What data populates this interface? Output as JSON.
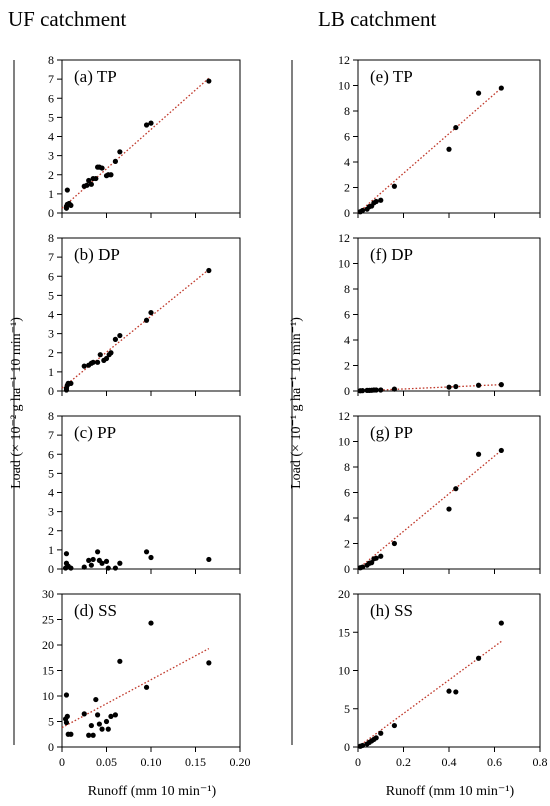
{
  "figure": {
    "left_title": "UF catchment",
    "right_title": "LB catchment",
    "left_ylabel": "Load (× 10⁻² g ha⁻¹ 10 min⁻¹)",
    "right_ylabel": "Load (× 10⁻¹ g ha⁻¹ 10 min⁻¹)",
    "left_xlabel": "Runoff (mm 10 min⁻¹)",
    "right_xlabel": "Runoff (mm 10 min⁻¹)"
  },
  "colors": {
    "points": "#000000",
    "trend": "#c0392b",
    "axis": "#000000"
  },
  "chart_data": [
    {
      "type": "scatter",
      "id": "a",
      "label": "(a) TP",
      "xlim": [
        0,
        0.2
      ],
      "ylim": [
        0,
        8
      ],
      "xticks": [],
      "yticks": [
        "0",
        "1",
        "2",
        "3",
        "4",
        "5",
        "6",
        "7",
        "8"
      ],
      "points": [
        [
          0.005,
          0.25
        ],
        [
          0.005,
          0.35
        ],
        [
          0.006,
          0.45
        ],
        [
          0.006,
          1.2
        ],
        [
          0.008,
          0.5
        ],
        [
          0.01,
          0.4
        ],
        [
          0.025,
          1.4
        ],
        [
          0.028,
          1.45
        ],
        [
          0.03,
          1.7
        ],
        [
          0.033,
          1.5
        ],
        [
          0.035,
          1.8
        ],
        [
          0.038,
          1.8
        ],
        [
          0.04,
          2.4
        ],
        [
          0.042,
          2.4
        ],
        [
          0.045,
          2.35
        ],
        [
          0.05,
          1.95
        ],
        [
          0.052,
          2.0
        ],
        [
          0.055,
          2.0
        ],
        [
          0.06,
          2.7
        ],
        [
          0.065,
          3.2
        ],
        [
          0.095,
          4.6
        ],
        [
          0.1,
          4.7
        ],
        [
          0.165,
          6.9
        ]
      ],
      "trend": [
        [
          0.0,
          0.25
        ],
        [
          0.165,
          7.05
        ]
      ]
    },
    {
      "type": "scatter",
      "id": "b",
      "label": "(b) DP",
      "xlim": [
        0,
        0.2
      ],
      "ylim": [
        0,
        8
      ],
      "xticks": [],
      "yticks": [
        "0",
        "1",
        "2",
        "3",
        "4",
        "5",
        "6",
        "7",
        "8"
      ],
      "points": [
        [
          0.005,
          0.05
        ],
        [
          0.005,
          0.15
        ],
        [
          0.006,
          0.3
        ],
        [
          0.007,
          0.4
        ],
        [
          0.01,
          0.4
        ],
        [
          0.025,
          1.3
        ],
        [
          0.03,
          1.35
        ],
        [
          0.033,
          1.45
        ],
        [
          0.035,
          1.5
        ],
        [
          0.04,
          1.5
        ],
        [
          0.043,
          1.9
        ],
        [
          0.047,
          1.6
        ],
        [
          0.05,
          1.7
        ],
        [
          0.053,
          1.9
        ],
        [
          0.055,
          2.0
        ],
        [
          0.06,
          2.7
        ],
        [
          0.065,
          2.9
        ],
        [
          0.095,
          3.7
        ],
        [
          0.1,
          4.1
        ],
        [
          0.165,
          6.3
        ]
      ],
      "trend": [
        [
          0.0,
          0.15
        ],
        [
          0.165,
          6.35
        ]
      ]
    },
    {
      "type": "scatter",
      "id": "c",
      "label": "(c) PP",
      "xlim": [
        0,
        0.2
      ],
      "ylim": [
        0,
        8
      ],
      "xticks": [],
      "yticks": [
        "0",
        "1",
        "2",
        "3",
        "4",
        "5",
        "6",
        "7",
        "8"
      ],
      "points": [
        [
          0.004,
          0.05
        ],
        [
          0.005,
          0.3
        ],
        [
          0.005,
          0.8
        ],
        [
          0.006,
          0.1
        ],
        [
          0.007,
          0.15
        ],
        [
          0.01,
          0.05
        ],
        [
          0.025,
          0.1
        ],
        [
          0.03,
          0.45
        ],
        [
          0.033,
          0.2
        ],
        [
          0.035,
          0.5
        ],
        [
          0.04,
          0.9
        ],
        [
          0.042,
          0.45
        ],
        [
          0.045,
          0.3
        ],
        [
          0.05,
          0.4
        ],
        [
          0.052,
          0.05
        ],
        [
          0.06,
          0.05
        ],
        [
          0.065,
          0.3
        ],
        [
          0.095,
          0.9
        ],
        [
          0.1,
          0.6
        ],
        [
          0.165,
          0.5
        ]
      ],
      "trend": null
    },
    {
      "type": "scatter",
      "id": "d",
      "label": "(d) SS",
      "xlim": [
        0,
        0.2
      ],
      "ylim": [
        0,
        30
      ],
      "xticks": [
        "0",
        "0.05",
        "0.10",
        "0.15",
        "0.20"
      ],
      "yticks": [
        "0",
        "5",
        "10",
        "15",
        "20",
        "25",
        "30"
      ],
      "points": [
        [
          0.004,
          5.5
        ],
        [
          0.005,
          4.8
        ],
        [
          0.005,
          10.2
        ],
        [
          0.006,
          6.0
        ],
        [
          0.007,
          2.5
        ],
        [
          0.01,
          2.5
        ],
        [
          0.025,
          6.5
        ],
        [
          0.03,
          2.3
        ],
        [
          0.033,
          4.2
        ],
        [
          0.035,
          2.3
        ],
        [
          0.038,
          9.3
        ],
        [
          0.04,
          6.3
        ],
        [
          0.042,
          4.5
        ],
        [
          0.045,
          3.5
        ],
        [
          0.05,
          5.0
        ],
        [
          0.052,
          3.5
        ],
        [
          0.055,
          6.0
        ],
        [
          0.06,
          6.3
        ],
        [
          0.065,
          16.8
        ],
        [
          0.095,
          11.7
        ],
        [
          0.1,
          24.3
        ],
        [
          0.165,
          16.5
        ]
      ],
      "trend": [
        [
          0.0,
          3.8
        ],
        [
          0.165,
          19.3
        ]
      ]
    },
    {
      "type": "scatter",
      "id": "e",
      "label": "(e) TP",
      "xlim": [
        0,
        0.8
      ],
      "ylim": [
        0,
        12
      ],
      "xticks": [],
      "yticks": [
        "0",
        "2",
        "4",
        "6",
        "8",
        "10",
        "12"
      ],
      "points": [
        [
          0.01,
          0.1
        ],
        [
          0.02,
          0.2
        ],
        [
          0.04,
          0.3
        ],
        [
          0.05,
          0.5
        ],
        [
          0.06,
          0.55
        ],
        [
          0.07,
          0.8
        ],
        [
          0.08,
          0.9
        ],
        [
          0.1,
          1.0
        ],
        [
          0.16,
          2.1
        ],
        [
          0.4,
          5.0
        ],
        [
          0.43,
          6.7
        ],
        [
          0.53,
          9.4
        ],
        [
          0.63,
          9.8
        ]
      ],
      "trend": [
        [
          0.0,
          0.0
        ],
        [
          0.63,
          9.8
        ]
      ]
    },
    {
      "type": "scatter",
      "id": "f",
      "label": "(f) DP",
      "xlim": [
        0,
        0.8
      ],
      "ylim": [
        0,
        12
      ],
      "xticks": [],
      "yticks": [
        "0",
        "2",
        "4",
        "6",
        "8",
        "10",
        "12"
      ],
      "points": [
        [
          0.01,
          0.02
        ],
        [
          0.02,
          0.03
        ],
        [
          0.04,
          0.05
        ],
        [
          0.05,
          0.05
        ],
        [
          0.06,
          0.06
        ],
        [
          0.07,
          0.08
        ],
        [
          0.08,
          0.08
        ],
        [
          0.1,
          0.08
        ],
        [
          0.16,
          0.15
        ],
        [
          0.4,
          0.3
        ],
        [
          0.43,
          0.35
        ],
        [
          0.53,
          0.45
        ],
        [
          0.63,
          0.5
        ]
      ],
      "trend": [
        [
          0.0,
          0.0
        ],
        [
          0.63,
          0.5
        ]
      ]
    },
    {
      "type": "scatter",
      "id": "g",
      "label": "(g) PP",
      "xlim": [
        0,
        0.8
      ],
      "ylim": [
        0,
        12
      ],
      "xticks": [],
      "yticks": [
        "0",
        "2",
        "4",
        "6",
        "8",
        "10",
        "12"
      ],
      "points": [
        [
          0.01,
          0.1
        ],
        [
          0.02,
          0.15
        ],
        [
          0.04,
          0.3
        ],
        [
          0.05,
          0.45
        ],
        [
          0.06,
          0.5
        ],
        [
          0.07,
          0.8
        ],
        [
          0.08,
          0.85
        ],
        [
          0.1,
          1.0
        ],
        [
          0.16,
          2.0
        ],
        [
          0.4,
          4.7
        ],
        [
          0.43,
          6.3
        ],
        [
          0.53,
          9.0
        ],
        [
          0.63,
          9.3
        ]
      ],
      "trend": [
        [
          0.0,
          0.0
        ],
        [
          0.63,
          9.3
        ]
      ]
    },
    {
      "type": "scatter",
      "id": "h",
      "label": "(h) SS",
      "xlim": [
        0,
        0.8
      ],
      "ylim": [
        0,
        20
      ],
      "xticks": [
        "0",
        "0.2",
        "0.4",
        "0.6",
        "0.8"
      ],
      "yticks": [
        "0",
        "5",
        "10",
        "15",
        "20"
      ],
      "points": [
        [
          0.01,
          0.1
        ],
        [
          0.02,
          0.2
        ],
        [
          0.04,
          0.4
        ],
        [
          0.05,
          0.6
        ],
        [
          0.06,
          0.8
        ],
        [
          0.07,
          1.0
        ],
        [
          0.08,
          1.2
        ],
        [
          0.1,
          1.8
        ],
        [
          0.16,
          2.8
        ],
        [
          0.4,
          7.3
        ],
        [
          0.43,
          7.2
        ],
        [
          0.53,
          11.6
        ],
        [
          0.63,
          16.2
        ]
      ],
      "trend": [
        [
          0.0,
          0.0
        ],
        [
          0.63,
          13.8
        ]
      ]
    }
  ]
}
